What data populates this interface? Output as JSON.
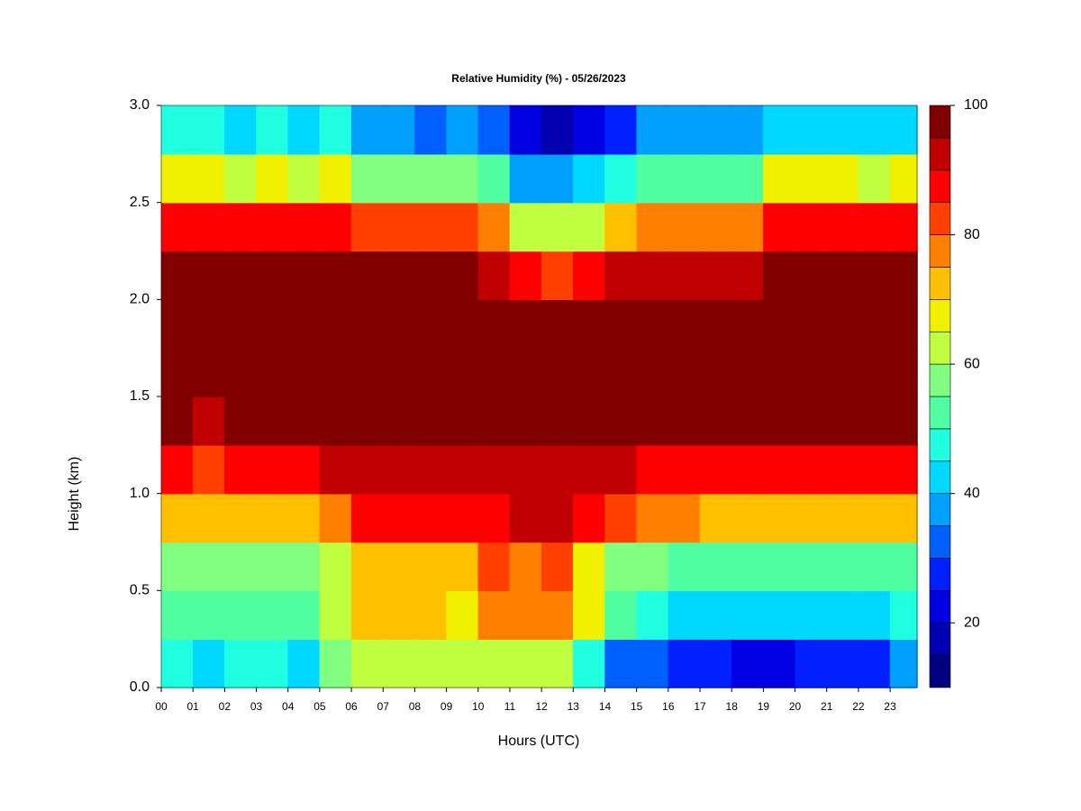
{
  "chart_data": {
    "type": "filled-contour",
    "title": "Relative Humidity (%) - 05/26/2023",
    "xlabel": "Hours (UTC)",
    "ylabel": "Height (km)",
    "xlim": [
      0,
      23.85
    ],
    "ylim": [
      0,
      3
    ],
    "xticks": [
      {
        "value": 0,
        "label": "00"
      },
      {
        "value": 1,
        "label": "01"
      },
      {
        "value": 2,
        "label": "02"
      },
      {
        "value": 3,
        "label": "03"
      },
      {
        "value": 4,
        "label": "04"
      },
      {
        "value": 5,
        "label": "05"
      },
      {
        "value": 6,
        "label": "06"
      },
      {
        "value": 7,
        "label": "07"
      },
      {
        "value": 8,
        "label": "08"
      },
      {
        "value": 9,
        "label": "09"
      },
      10,
      11,
      12,
      13,
      14,
      15,
      16,
      17,
      18,
      19,
      20,
      21,
      22,
      23
    ],
    "yticks": [
      {
        "value": 0,
        "label": "0.0"
      },
      {
        "value": 0.5,
        "label": "0.5"
      },
      {
        "value": 1,
        "label": "1.0"
      },
      {
        "value": 1.5,
        "label": "1.5"
      },
      {
        "value": 2,
        "label": "2.0"
      },
      {
        "value": 2.5,
        "label": "2.5"
      },
      {
        "value": 3,
        "label": "3.0"
      }
    ],
    "x": [
      0,
      1,
      2,
      3,
      4,
      5,
      6,
      7,
      8,
      9,
      10,
      11,
      12,
      13,
      14,
      15,
      16,
      17,
      18,
      19,
      20,
      21,
      22,
      23
    ],
    "y": [
      0,
      0.25,
      0.5,
      0.75,
      1,
      1.25,
      1.5,
      1.75,
      2,
      2.25,
      2.5,
      2.75
    ],
    "z": [
      [
        45,
        44,
        46,
        45,
        44,
        55,
        62,
        63,
        62,
        61,
        62,
        61,
        60,
        45,
        30,
        30,
        29,
        25,
        24,
        24,
        25,
        25,
        27,
        35
      ],
      [
        52,
        51,
        53,
        52,
        52,
        60,
        70,
        71,
        70,
        69,
        78,
        77,
        78,
        65,
        50,
        45,
        44,
        42,
        42,
        43,
        42,
        42,
        43,
        45
      ],
      [
        57,
        56,
        58,
        57,
        57,
        62,
        72,
        73,
        72,
        71,
        80,
        79,
        80,
        68,
        55,
        55,
        54,
        50,
        50,
        51,
        50,
        50,
        51,
        52
      ],
      [
        72,
        71,
        73,
        72,
        72,
        78,
        85,
        86,
        85,
        85,
        89,
        90,
        90,
        86,
        82,
        75,
        76,
        74,
        74,
        71,
        70,
        70,
        71,
        72
      ],
      [
        85,
        84,
        86,
        85,
        86,
        90,
        93,
        93,
        93,
        92,
        94,
        94,
        94,
        93,
        91,
        88,
        88,
        88,
        88,
        86,
        85,
        85,
        86,
        86
      ],
      [
        95,
        94,
        95,
        95,
        96,
        97,
        98,
        98,
        98,
        97,
        97,
        97,
        97,
        97,
        96,
        96,
        96,
        96,
        96,
        95,
        95,
        95,
        95,
        95
      ],
      [
        98,
        98,
        98,
        98,
        98,
        98,
        98,
        98,
        98,
        98,
        98,
        98,
        98,
        98,
        98,
        98,
        98,
        98,
        98,
        98,
        98,
        98,
        98,
        98
      ],
      [
        98,
        98,
        98,
        98,
        98,
        98,
        98,
        98,
        98,
        98,
        98,
        96,
        96,
        96,
        98,
        98,
        98,
        98,
        98,
        98,
        98,
        98,
        98,
        98
      ],
      [
        97,
        97,
        97,
        97,
        97,
        97,
        95,
        95,
        95,
        95,
        93,
        85,
        84,
        86,
        90,
        93,
        93,
        93,
        93,
        97,
        97,
        97,
        97,
        97
      ],
      [
        88,
        88,
        87,
        88,
        87,
        88,
        80,
        80,
        80,
        80,
        75,
        62,
        60,
        63,
        70,
        75,
        75,
        75,
        75,
        88,
        88,
        88,
        87,
        88
      ],
      [
        65,
        65,
        64,
        65,
        64,
        66,
        55,
        55,
        55,
        55,
        50,
        38,
        36,
        40,
        45,
        50,
        50,
        50,
        50,
        65,
        65,
        65,
        64,
        65
      ],
      [
        45,
        45,
        44,
        45,
        44,
        46,
        35,
        35,
        34,
        35,
        30,
        20,
        18,
        22,
        28,
        35,
        35,
        35,
        35,
        42,
        42,
        43,
        42,
        42
      ]
    ],
    "colorbar": {
      "levels": [
        10,
        15,
        20,
        25,
        30,
        35,
        40,
        45,
        50,
        55,
        60,
        65,
        70,
        75,
        80,
        85,
        90,
        95,
        100
      ],
      "colors": [
        "#000080",
        "#0000b0",
        "#0000e0",
        "#0020ff",
        "#0060ff",
        "#00a0ff",
        "#00d8ff",
        "#20ffe0",
        "#50ffa0",
        "#80ff80",
        "#c0ff40",
        "#f0f000",
        "#ffc000",
        "#ff8000",
        "#ff4000",
        "#ff0000",
        "#c00000",
        "#800000"
      ],
      "ticks": [
        20,
        40,
        60,
        80,
        100
      ]
    }
  }
}
